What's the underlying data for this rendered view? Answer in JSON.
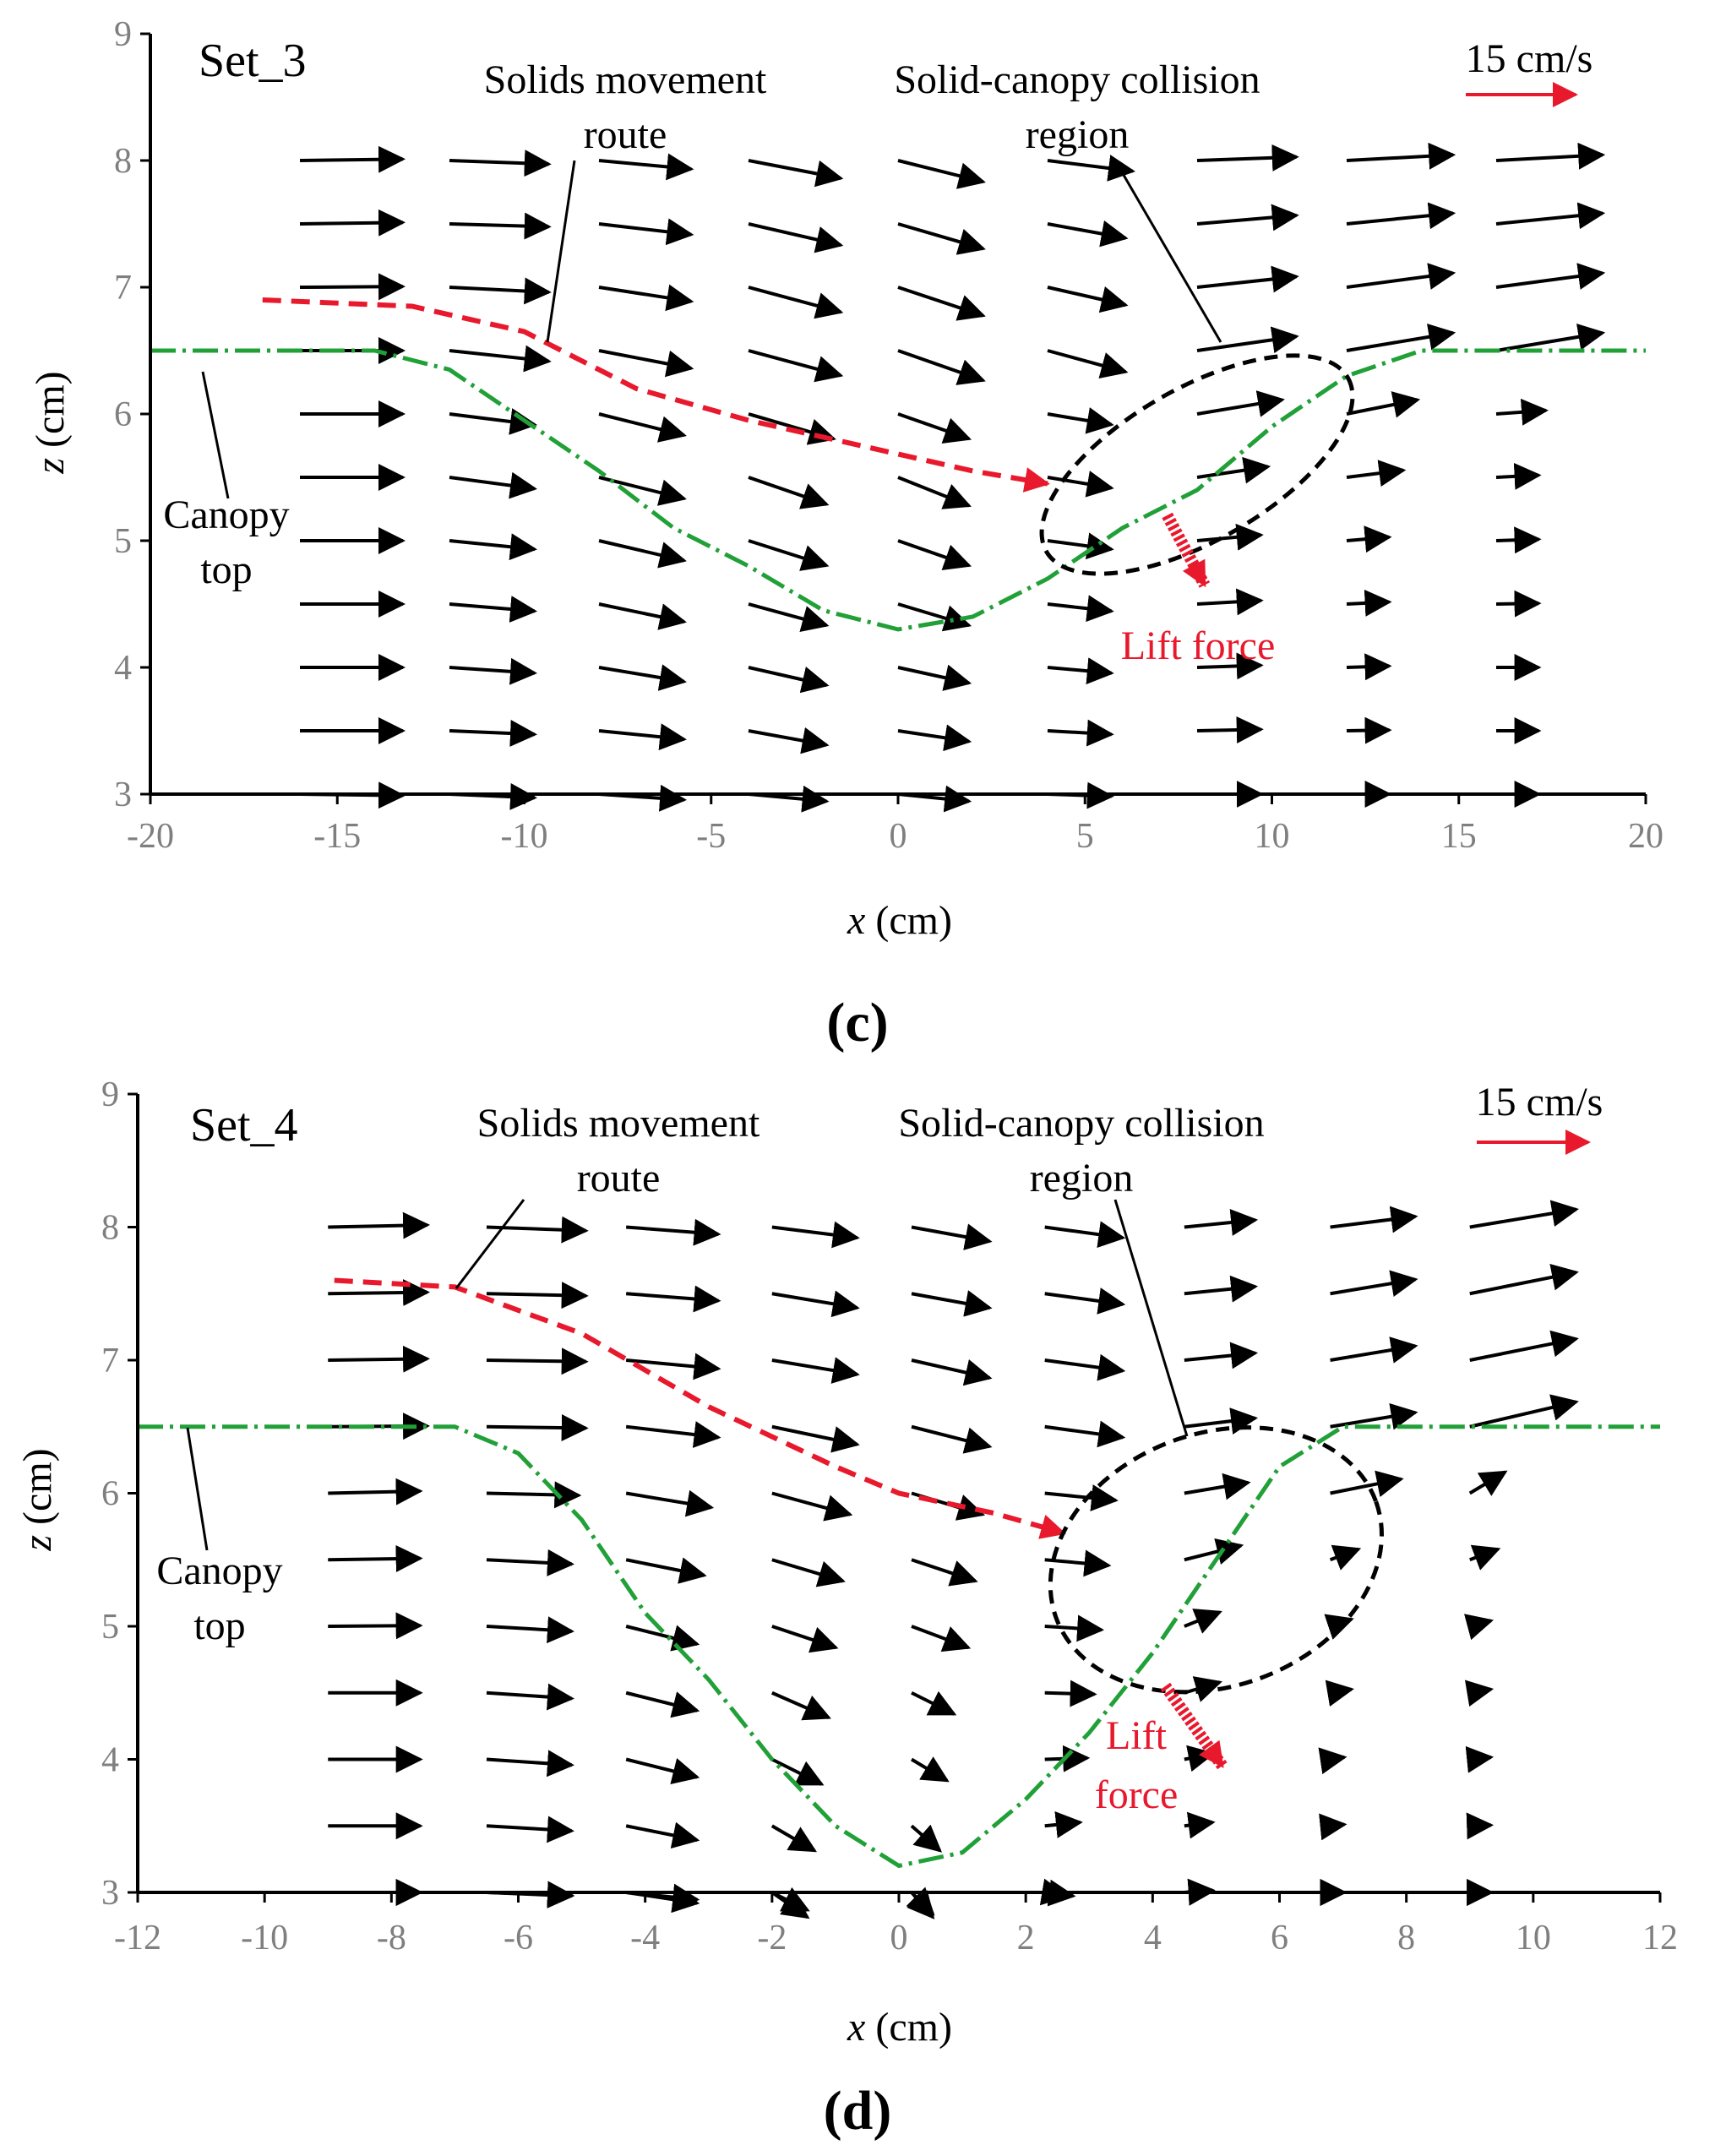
{
  "colors": {
    "axis": "#000000",
    "tick_text": "#7f7f7f",
    "vector": "#000000",
    "canopy": "#21a038",
    "route": "#e8192c",
    "lift": "#e8192c",
    "collision": "#000000"
  },
  "chart_data": [
    {
      "type": "vector-field",
      "set_label": "Set_3",
      "panel_label": "(c)",
      "xlabel_var": "x",
      "xlabel_unit": " (cm)",
      "ylabel_var": "z",
      "ylabel_unit": " (cm)",
      "xlim": [
        -20,
        20
      ],
      "ylim": [
        3,
        9
      ],
      "xticks": [
        "-20",
        "-15",
        "-10",
        "-5",
        "0",
        "5",
        "10",
        "15",
        "20"
      ],
      "yticks": [
        "3",
        "4",
        "5",
        "6",
        "7",
        "8",
        "9"
      ],
      "scale_label": "15 cm/s",
      "scale_value": 15,
      "annotations": {
        "route": "Solids movement",
        "route2": "route",
        "collision": "Solid-canopy collision",
        "collision2": "region",
        "canopy": "Canopy",
        "canopy2": "top",
        "lift": "Lift force",
        "lift2": ""
      },
      "vectors": {
        "columns": [
          {
            "x": -16,
            "u": [
              14.5,
              14.5,
              14.5,
              14.5,
              14.5,
              14.5,
              14.5,
              14.5,
              14.5,
              14.5,
              14.5
            ],
            "w": [
              0.2,
              0.2,
              0.1,
              0.0,
              0.0,
              0.0,
              0.0,
              0.0,
              0.0,
              0.0,
              -0.2
            ]
          },
          {
            "x": -12,
            "u": [
              14,
              14,
              14,
              14,
              12,
              12,
              12,
              12,
              12,
              12,
              12
            ],
            "w": [
              -0.5,
              -0.4,
              -0.7,
              -1.5,
              -1.5,
              -1.6,
              -1.2,
              -1.0,
              -0.8,
              -0.5,
              -0.5
            ]
          },
          {
            "x": -8,
            "u": [
              13,
              13,
              13,
              13,
              12,
              12,
              12,
              12,
              12,
              12,
              12
            ],
            "w": [
              -1.2,
              -1.5,
              -2.0,
              -2.5,
              -3.0,
              -3.0,
              -2.8,
              -2.5,
              -2.0,
              -1.2,
              -0.8
            ]
          },
          {
            "x": -4,
            "u": [
              13,
              13,
              13,
              13,
              12,
              11,
              11,
              11,
              11,
              11,
              11
            ],
            "w": [
              -2.5,
              -3.0,
              -3.5,
              -3.5,
              -3.5,
              -3.8,
              -3.5,
              -3.0,
              -2.5,
              -2.0,
              -1.0
            ]
          },
          {
            "x": 0,
            "u": [
              12,
              12,
              12,
              12,
              10,
              10,
              10,
              10,
              10,
              10,
              10
            ],
            "w": [
              -3.0,
              -3.5,
              -4.0,
              -4.2,
              -3.5,
              -4.0,
              -3.5,
              -3.0,
              -2.2,
              -1.5,
              -1.0
            ]
          },
          {
            "x": 4,
            "u": [
              12,
              11,
              11,
              11,
              9,
              9,
              9,
              9,
              9,
              9,
              9
            ],
            "w": [
              -1.5,
              -2.0,
              -2.5,
              -3.0,
              -1.5,
              -1.5,
              -1.2,
              -1.0,
              -0.8,
              -0.5,
              -0.3
            ]
          },
          {
            "x": 8,
            "u": [
              14,
              14,
              14,
              14,
              12,
              10,
              9,
              9,
              9,
              9,
              9
            ],
            "w": [
              0.5,
              1.2,
              1.5,
              2.0,
              2.0,
              1.5,
              0.8,
              0.5,
              0.3,
              0.2,
              0.0
            ]
          },
          {
            "x": 12,
            "u": [
              15,
              15,
              15,
              15,
              10,
              8,
              6,
              6,
              6,
              6,
              6
            ],
            "w": [
              0.8,
              1.5,
              2.0,
              2.5,
              2.0,
              1.0,
              0.5,
              0.3,
              0.2,
              0.1,
              0.0
            ]
          },
          {
            "x": 16,
            "u": [
              15,
              15,
              15,
              15,
              7,
              6,
              6,
              6,
              6,
              6,
              6
            ],
            "w": [
              0.8,
              1.5,
              2.0,
              2.5,
              0.5,
              0.3,
              0.2,
              0.1,
              0.0,
              0.0,
              0.0
            ]
          }
        ],
        "z": [
          8,
          7.5,
          7,
          6.5,
          6,
          5.5,
          5,
          4.5,
          4,
          3.5,
          3
        ]
      },
      "canopy_line": {
        "x": [
          -20,
          -14,
          -12,
          -10,
          -8,
          -6,
          -4,
          -2,
          0,
          2,
          4,
          6,
          8,
          10,
          12,
          14,
          20
        ],
        "z": [
          6.5,
          6.5,
          6.35,
          5.95,
          5.55,
          5.1,
          4.8,
          4.45,
          4.3,
          4.4,
          4.7,
          5.1,
          5.4,
          5.9,
          6.3,
          6.5,
          6.5
        ]
      },
      "route_line": {
        "x": [
          -17,
          -13,
          -10,
          -7,
          -4,
          -1,
          2,
          4
        ],
        "z": [
          6.9,
          6.85,
          6.65,
          6.2,
          5.95,
          5.75,
          5.55,
          5.45
        ]
      },
      "collision_ellipse": {
        "cx": 8,
        "cz": 5.6,
        "rx": 7.5,
        "rz": 0.6,
        "angle_deg": -30
      },
      "lift_arrow": {
        "x0": 7.2,
        "z0": 5.2,
        "x1": 8.2,
        "z1": 4.65
      }
    },
    {
      "type": "vector-field",
      "set_label": "Set_4",
      "panel_label": "(d)",
      "xlabel_var": "x",
      "xlabel_unit": " (cm)",
      "ylabel_var": "z",
      "ylabel_unit": " (cm)",
      "xlim": [
        -12,
        12
      ],
      "ylim": [
        3,
        9
      ],
      "xticks": [
        "-12",
        "-10",
        "-8",
        "-6",
        "-4",
        "-2",
        "0",
        "2",
        "4",
        "6",
        "8",
        "10",
        "12"
      ],
      "yticks": [
        "3",
        "4",
        "5",
        "6",
        "7",
        "8",
        "9"
      ],
      "scale_label": "15 cm/s",
      "scale_value": 15,
      "annotations": {
        "route": "Solids movement",
        "route2": "route",
        "collision": "Solid-canopy collision",
        "collision2": "region",
        "canopy": "Canopy",
        "canopy2": "top",
        "lift": "Lift",
        "lift2": "force"
      },
      "vectors": {
        "columns": [
          {
            "x": -9,
            "u": [
              14,
              14,
              14,
              14,
              13,
              13,
              13,
              13,
              13,
              13,
              13,
              13
            ],
            "w": [
              0.3,
              0.2,
              0.2,
              0.1,
              0.3,
              0.2,
              0.1,
              0.0,
              0.0,
              0.0,
              0.0,
              0.0
            ]
          },
          {
            "x": -6.5,
            "u": [
              14,
              14,
              14,
              14,
              13,
              12,
              12,
              12,
              12,
              12,
              12,
              12
            ],
            "w": [
              -0.5,
              -0.3,
              -0.2,
              -0.2,
              -0.3,
              -0.6,
              -0.7,
              -0.8,
              -0.8,
              -0.7,
              -0.5,
              -0.4
            ]
          },
          {
            "x": -4.3,
            "u": [
              13,
              13,
              13,
              13,
              12,
              11,
              10,
              10,
              10,
              10,
              10,
              10
            ],
            "w": [
              -1.0,
              -1.0,
              -1.2,
              -1.5,
              -2.0,
              -2.2,
              -2.5,
              -2.5,
              -2.5,
              -2.0,
              -1.5,
              -1.0
            ]
          },
          {
            "x": -2,
            "u": [
              12,
              12,
              12,
              12,
              11,
              10,
              9,
              8,
              7,
              6,
              5,
              5
            ],
            "w": [
              -1.5,
              -2.0,
              -2.0,
              -2.5,
              -3.0,
              -3.0,
              -3.0,
              -3.5,
              -3.5,
              -3.5,
              -3.5,
              -2.5
            ]
          },
          {
            "x": 0.2,
            "u": [
              11,
              11,
              11,
              11,
              10,
              9,
              8,
              6,
              5,
              4,
              3,
              3
            ],
            "w": [
              -2.0,
              -2.0,
              -2.5,
              -2.8,
              -3.0,
              -3.0,
              -3.0,
              -3.0,
              -3.0,
              -3.5,
              -3.5,
              -3.0
            ]
          },
          {
            "x": 2.3,
            "u": [
              11,
              11,
              11,
              11,
              10,
              9,
              8,
              7,
              6,
              5,
              4,
              3
            ],
            "w": [
              -1.5,
              -1.5,
              -1.5,
              -1.5,
              -1.0,
              -0.8,
              -0.5,
              -0.2,
              0.2,
              0.5,
              -0.5,
              -0.5
            ]
          },
          {
            "x": 4.5,
            "u": [
              10,
              10,
              10,
              10,
              9,
              8,
              5,
              5,
              4,
              4,
              4,
              4
            ],
            "w": [
              1.0,
              1.0,
              1.0,
              1.2,
              1.5,
              2.0,
              2.0,
              1.5,
              0.8,
              0.5,
              0.3,
              0.2
            ]
          },
          {
            "x": 6.8,
            "u": [
              12,
              12,
              12,
              12,
              10,
              4,
              3,
              3,
              2,
              2,
              2,
              2
            ],
            "w": [
              1.5,
              2.0,
              2.0,
              2.0,
              2.0,
              1.5,
              1.0,
              0.5,
              0.3,
              0.2,
              0.0,
              0.0
            ]
          },
          {
            "x": 9,
            "u": [
              15,
              15,
              15,
              15,
              5,
              4,
              3,
              3,
              3,
              3,
              3,
              3
            ],
            "w": [
              2.5,
              3.0,
              3.0,
              3.5,
              3.0,
              1.5,
              0.8,
              0.5,
              0.3,
              0.1,
              0.0,
              0.0
            ]
          }
        ],
        "z": [
          8,
          7.5,
          7,
          6.5,
          6,
          5.5,
          5,
          4.5,
          4,
          3.5,
          3,
          3
        ]
      },
      "canopy_line": {
        "x": [
          -12,
          -7,
          -6,
          -5,
          -4,
          -3,
          -2,
          -1,
          0,
          1,
          2,
          3,
          4,
          5,
          6,
          7,
          12
        ],
        "z": [
          6.5,
          6.5,
          6.3,
          5.8,
          5.1,
          4.6,
          4.0,
          3.5,
          3.2,
          3.3,
          3.7,
          4.2,
          4.8,
          5.5,
          6.2,
          6.5,
          6.5
        ]
      },
      "route_line": {
        "x": [
          -8.9,
          -7,
          -5,
          -3,
          -1,
          0,
          1.5,
          2.6
        ],
        "z": [
          7.6,
          7.55,
          7.2,
          6.65,
          6.2,
          6.0,
          5.85,
          5.7
        ]
      },
      "collision_ellipse": {
        "cx": 5,
        "cz": 5.5,
        "rx": 4.3,
        "rz": 0.95,
        "angle_deg": -20
      },
      "lift_arrow": {
        "x0": 4.2,
        "z0": 4.55,
        "x1": 5.1,
        "z1": 3.95
      }
    }
  ]
}
